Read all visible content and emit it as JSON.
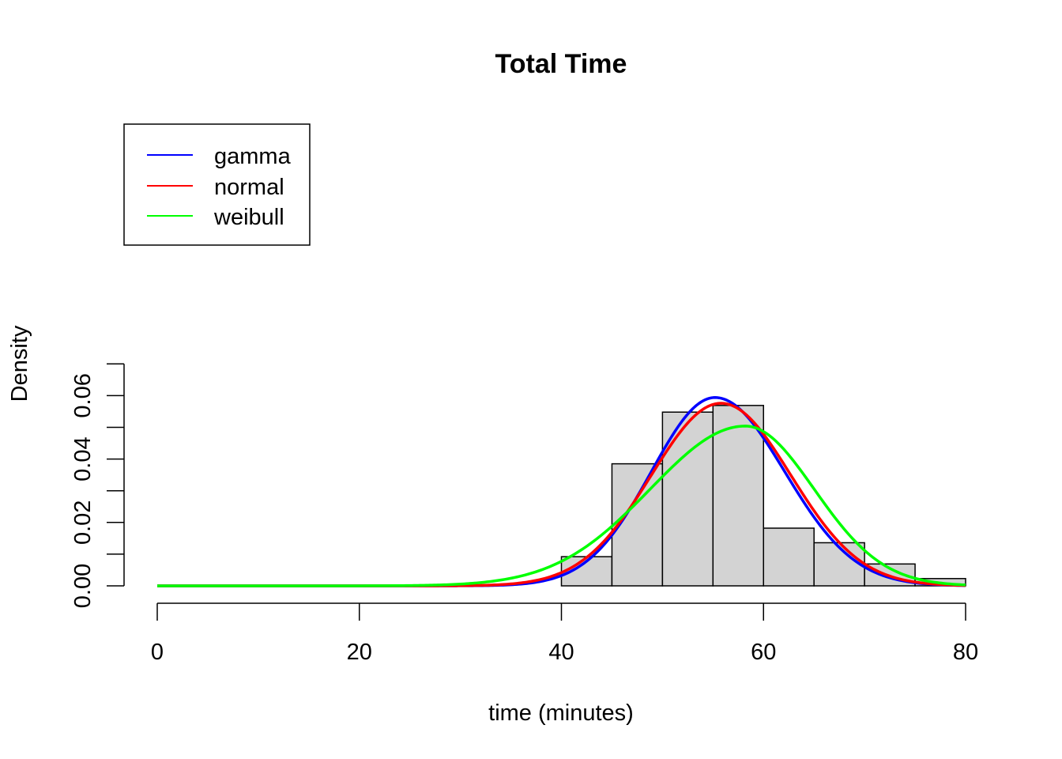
{
  "chart_data": {
    "type": "bar",
    "title": "Total Time",
    "xlabel": "time (minutes)",
    "ylabel": "Density",
    "xlim": [
      0,
      80
    ],
    "ylim": [
      0,
      0.07
    ],
    "x_ticks": [
      "0",
      "20",
      "40",
      "60",
      "80"
    ],
    "y_ticks": [
      "0.00",
      "0.02",
      "0.04",
      "0.06"
    ],
    "grid": false,
    "legend_position": "top-left",
    "histogram": {
      "bins": [
        {
          "start": 40,
          "end": 45,
          "density": 0.0092
        },
        {
          "start": 45,
          "end": 50,
          "density": 0.0385
        },
        {
          "start": 50,
          "end": 55,
          "density": 0.0548
        },
        {
          "start": 55,
          "end": 60,
          "density": 0.0569
        },
        {
          "start": 60,
          "end": 65,
          "density": 0.0182
        },
        {
          "start": 65,
          "end": 70,
          "density": 0.0136
        },
        {
          "start": 70,
          "end": 75,
          "density": 0.0069
        },
        {
          "start": 75,
          "end": 80,
          "density": 0.0023
        }
      ],
      "fill": "#d3d3d3"
    },
    "series": [
      {
        "name": "gamma",
        "color": "#0000ff",
        "peak_x": 55.2,
        "peak_density": 0.0594,
        "sd_left": 6.3,
        "sd_right": 6.9
      },
      {
        "name": "normal",
        "color": "#ff0000",
        "peak_x": 55.8,
        "peak_density": 0.0576,
        "sd_left": 6.9,
        "sd_right": 6.9
      },
      {
        "name": "weibull",
        "color": "#00ff00",
        "peak_x": 58.2,
        "peak_density": 0.0504,
        "sd_left": 9.4,
        "sd_right": 6.8
      }
    ]
  }
}
